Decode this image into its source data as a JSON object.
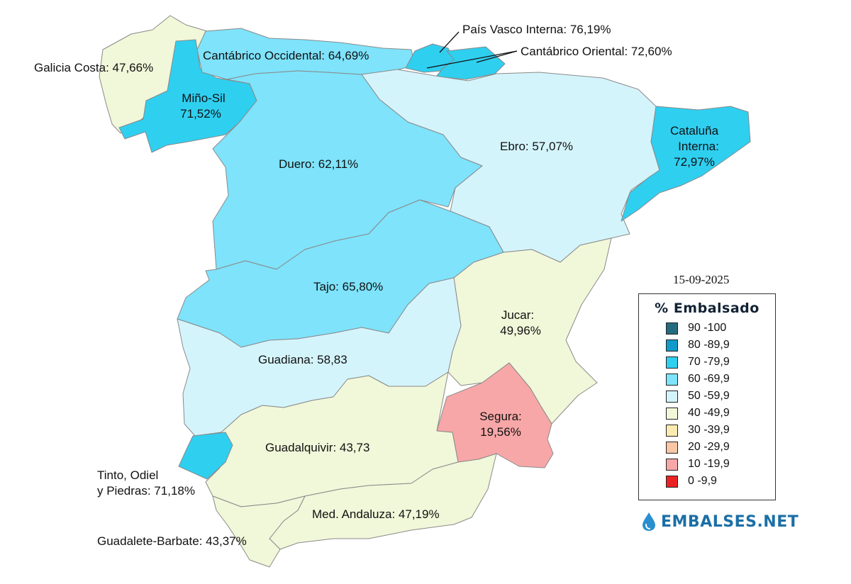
{
  "date": "15-09-2025",
  "legend": {
    "title": "% Embalsado",
    "items": [
      {
        "label": "90 -100",
        "color": "#256b80"
      },
      {
        "label": "80 -89,9",
        "color": "#0f9bc9"
      },
      {
        "label": "70 -79,9",
        "color": "#2fcff0"
      },
      {
        "label": "60 -69,9",
        "color": "#7ee3fb"
      },
      {
        "label": "50 -59,9",
        "color": "#d4f4fc"
      },
      {
        "label": "40 -49,9",
        "color": "#f1f7d9"
      },
      {
        "label": "30 -39,9",
        "color": "#fcebb0"
      },
      {
        "label": "20 -29,9",
        "color": "#f9c7a5"
      },
      {
        "label": "10 -19,9",
        "color": "#f7a7a7"
      },
      {
        "label": "0 -9,9",
        "color": "#e92323"
      }
    ]
  },
  "brand": {
    "name": "EMBALSES.NET"
  },
  "basins": {
    "galicia_costa": {
      "label": "Galicia Costa: 47,66%",
      "value": 47.66
    },
    "mino_sil": {
      "label_line1": "Miño-Sil",
      "label_line2": "71,52%",
      "value": 71.52
    },
    "cantabrico_occidental": {
      "label": "Cantábrico Occidental: 64,69%",
      "value": 64.69
    },
    "pais_vasco_interna": {
      "label": "País Vasco Interna: 76,19%",
      "value": 76.19
    },
    "cantabrico_oriental": {
      "label": "Cantábrico Oriental: 72,60%",
      "value": 72.6
    },
    "cataluna_interna": {
      "label_line1": "Cataluña",
      "label_line2": "Interna:",
      "label_line3": "72,97%",
      "value": 72.97
    },
    "ebro": {
      "label": "Ebro: 57,07%",
      "value": 57.07
    },
    "duero": {
      "label": "Duero: 62,11%",
      "value": 62.11
    },
    "tajo": {
      "label": "Tajo: 65,80%",
      "value": 65.8
    },
    "jucar": {
      "label_line1": "Jucar:",
      "label_line2": "49,96%",
      "value": 49.96
    },
    "guadiana": {
      "label": "Guadiana: 58,83",
      "value": 58.83
    },
    "segura": {
      "label_line1": "Segura:",
      "label_line2": "19,56%",
      "value": 19.56
    },
    "guadalquivir": {
      "label": "Guadalquivir: 43,73",
      "value": 43.73
    },
    "tinto_odiel_piedras": {
      "label_line1": "Tinto, Odiel",
      "label_line2": "y Piedras: 71,18%",
      "value": 71.18
    },
    "med_andaluza": {
      "label": "Med. Andaluza: 47,19%",
      "value": 47.19
    },
    "guadalete_barbate": {
      "label": "Guadalete-Barbate: 43,37%",
      "value": 43.37
    }
  }
}
